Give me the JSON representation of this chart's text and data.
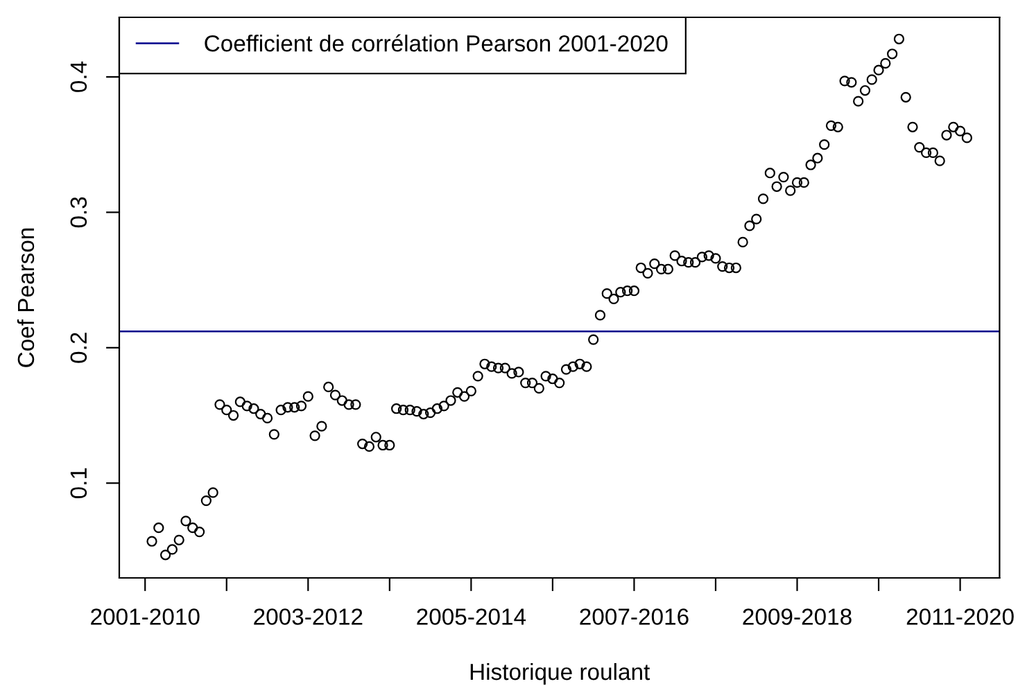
{
  "chart_data": {
    "type": "scatter",
    "xlabel": "Historique roulant",
    "ylabel": "Coef Pearson",
    "ylim": [
      0.03,
      0.444
    ],
    "yticks": [
      0.1,
      0.2,
      0.3,
      0.4
    ],
    "marker": "circle",
    "legend": "top left",
    "ref_lines": [
      {
        "axis": "y",
        "value": 0.212,
        "label": "Coefficient de corrélation Pearson 2001-2020",
        "color": "#00008b",
        "line_style": "solid"
      }
    ],
    "categories": [
      "2001-2010",
      null,
      null,
      null,
      null,
      null,
      null,
      null,
      null,
      null,
      null,
      null,
      null,
      null,
      null,
      null,
      null,
      null,
      null,
      null,
      null,
      null,
      null,
      null,
      "2003-2012",
      null,
      null,
      null,
      null,
      null,
      null,
      null,
      null,
      null,
      null,
      null,
      null,
      null,
      null,
      null,
      null,
      null,
      null,
      null,
      null,
      null,
      null,
      null,
      "2005-2014",
      null,
      null,
      null,
      null,
      null,
      null,
      null,
      null,
      null,
      null,
      null,
      null,
      null,
      null,
      null,
      null,
      null,
      null,
      null,
      null,
      null,
      null,
      null,
      "2007-2016",
      null,
      null,
      null,
      null,
      null,
      null,
      null,
      null,
      null,
      null,
      null,
      null,
      null,
      null,
      null,
      null,
      null,
      null,
      null,
      null,
      null,
      null,
      null,
      "2009-2018",
      null,
      null,
      null,
      null,
      null,
      null,
      null,
      null,
      null,
      null,
      null,
      null,
      null,
      null,
      null,
      null,
      null,
      null,
      null,
      null,
      null,
      null,
      null,
      "2011-2020",
      null
    ],
    "series": [
      {
        "color": "#000000",
        "values": [
          null,
          0.057,
          0.067,
          0.047,
          0.051,
          0.058,
          0.072,
          0.067,
          0.064,
          0.087,
          0.093,
          0.158,
          0.154,
          0.15,
          0.16,
          0.157,
          0.155,
          0.151,
          0.148,
          0.136,
          0.154,
          0.156,
          0.156,
          0.157,
          0.164,
          0.135,
          0.142,
          0.171,
          0.165,
          0.161,
          0.158,
          0.158,
          0.129,
          0.127,
          0.134,
          0.128,
          0.128,
          0.155,
          0.154,
          0.154,
          0.153,
          0.151,
          0.152,
          0.155,
          0.157,
          0.161,
          0.167,
          0.164,
          0.168,
          0.179,
          0.188,
          0.186,
          0.185,
          0.185,
          0.181,
          0.182,
          0.174,
          0.174,
          0.17,
          0.179,
          0.177,
          0.174,
          0.184,
          0.186,
          0.188,
          0.186,
          0.206,
          0.224,
          0.24,
          0.236,
          0.241,
          0.242,
          0.242,
          0.259,
          0.255,
          0.262,
          0.258,
          0.258,
          0.268,
          0.264,
          0.263,
          0.263,
          0.267,
          0.268,
          0.266,
          0.26,
          0.259,
          0.259,
          0.278,
          0.29,
          0.295,
          0.31,
          0.329,
          0.319,
          0.326,
          0.316,
          0.322,
          0.322,
          0.335,
          0.34,
          0.35,
          0.364,
          0.363,
          0.397,
          0.396,
          0.382,
          0.39,
          0.398,
          0.405,
          0.41,
          0.417,
          0.428,
          0.385,
          0.363,
          0.348,
          0.344,
          0.344,
          0.338,
          0.357,
          0.363,
          0.36,
          0.355
        ]
      }
    ]
  }
}
